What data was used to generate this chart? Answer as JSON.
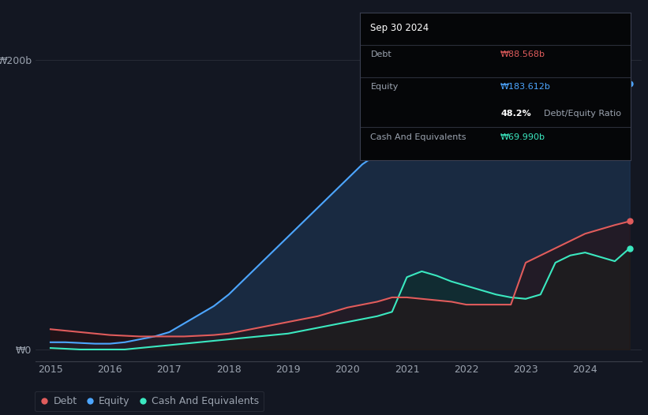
{
  "background_color": "#131722",
  "plot_bg_color": "#131722",
  "grid_color": "#2a2e39",
  "axis_color": "#3a3e4a",
  "text_color": "#9ba3af",
  "debt_color": "#e05c5c",
  "equity_color": "#4da6ff",
  "cash_color": "#3be8c0",
  "equity_fill": "#1e3a5c",
  "cash_fill": "#0d2e2a",
  "debt_fill": "#2a1010",
  "legend_items": [
    "Debt",
    "Equity",
    "Cash And Equivalents"
  ],
  "tooltip_title": "Sep 30 2024",
  "tooltip_debt_label": "Debt",
  "tooltip_debt_value": "₩88.568b",
  "tooltip_equity_label": "Equity",
  "tooltip_equity_value": "₩183.612b",
  "tooltip_ratio_value": "48.2%",
  "tooltip_ratio_label": "Debt/Equity Ratio",
  "tooltip_cash_label": "Cash And Equivalents",
  "tooltip_cash_value": "₩69.990b",
  "ytick_labels": [
    "₩0",
    "₩200b"
  ],
  "xtick_labels": [
    "2015",
    "2016",
    "2017",
    "2018",
    "2019",
    "2020",
    "2021",
    "2022",
    "2023",
    "2024"
  ],
  "years": [
    2015.0,
    2015.25,
    2015.5,
    2015.75,
    2016.0,
    2016.25,
    2016.5,
    2016.75,
    2017.0,
    2017.25,
    2017.5,
    2017.75,
    2018.0,
    2018.25,
    2018.5,
    2018.75,
    2019.0,
    2019.25,
    2019.5,
    2019.75,
    2020.0,
    2020.25,
    2020.5,
    2020.75,
    2021.0,
    2021.25,
    2021.5,
    2021.75,
    2022.0,
    2022.25,
    2022.5,
    2022.75,
    2023.0,
    2023.25,
    2023.5,
    2023.75,
    2024.0,
    2024.25,
    2024.5,
    2024.75
  ],
  "equity": [
    5,
    5,
    4.5,
    4,
    4,
    5,
    7,
    9,
    12,
    18,
    24,
    30,
    38,
    48,
    58,
    68,
    78,
    88,
    98,
    108,
    118,
    128,
    135,
    148,
    155,
    158,
    160,
    162,
    160,
    158,
    156,
    155,
    157,
    160,
    163,
    166,
    168,
    170,
    176,
    183.6
  ],
  "debt": [
    14,
    13,
    12,
    11,
    10,
    9.5,
    9,
    9,
    9,
    9,
    9.5,
    10,
    11,
    13,
    15,
    17,
    19,
    21,
    23,
    26,
    29,
    31,
    33,
    36,
    36,
    35,
    34,
    33,
    31,
    31,
    31,
    31,
    60,
    65,
    70,
    75,
    80,
    83,
    86,
    88.6
  ],
  "cash": [
    1,
    0.5,
    0,
    0,
    0,
    0,
    1,
    2,
    3,
    4,
    5,
    6,
    7,
    8,
    9,
    10,
    11,
    13,
    15,
    17,
    19,
    21,
    23,
    26,
    50,
    54,
    51,
    47,
    44,
    41,
    38,
    36,
    35,
    38,
    60,
    65,
    67,
    64,
    61,
    70.0
  ],
  "xmin": 2014.75,
  "xmax": 2024.95,
  "ymin": -8,
  "ymax": 210
}
